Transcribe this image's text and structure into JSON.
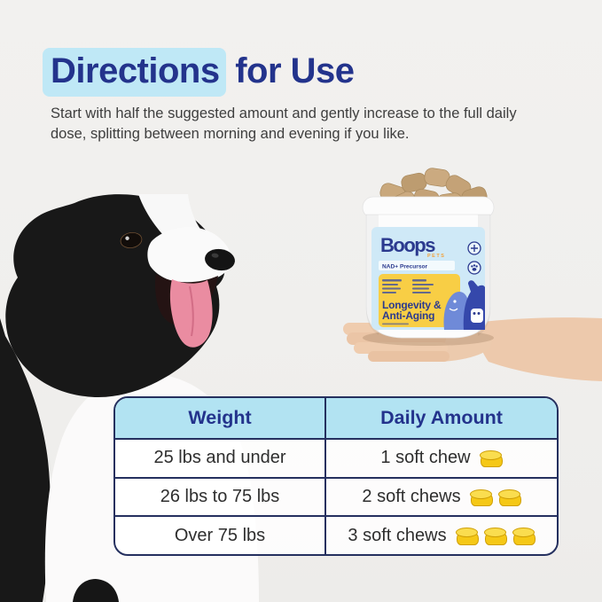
{
  "colors": {
    "bg": "#f0efed",
    "navy": "#23338c",
    "highlight": "#bfe8f6",
    "header-bg": "#b2e3f2",
    "border": "#25305f",
    "chew": "#f5c816",
    "chew-top": "#fadd4f",
    "chew-stroke": "#cf9f05"
  },
  "header": {
    "title_highlight": "Directions",
    "title_rest": " for Use",
    "subtitle_line1": "Start with half the suggested amount and gently increase to the full daily",
    "subtitle_line2": "dose, splitting between morning and evening if you like."
  },
  "product_label": {
    "brand": "Boops",
    "brand_sub": "PETS",
    "band": "NAD+ Precursor",
    "title_line1": "Longevity &",
    "title_line2": "Anti-Aging"
  },
  "table": {
    "col_weight": "Weight",
    "col_amount": "Daily Amount",
    "rows": [
      {
        "weight": "25 lbs and under",
        "amount": "1 soft chew",
        "chews": 1
      },
      {
        "weight": "26 lbs to 75 lbs",
        "amount": "2 soft chews",
        "chews": 2
      },
      {
        "weight": "Over 75 lbs",
        "amount": "3 soft chews",
        "chews": 3
      }
    ]
  }
}
